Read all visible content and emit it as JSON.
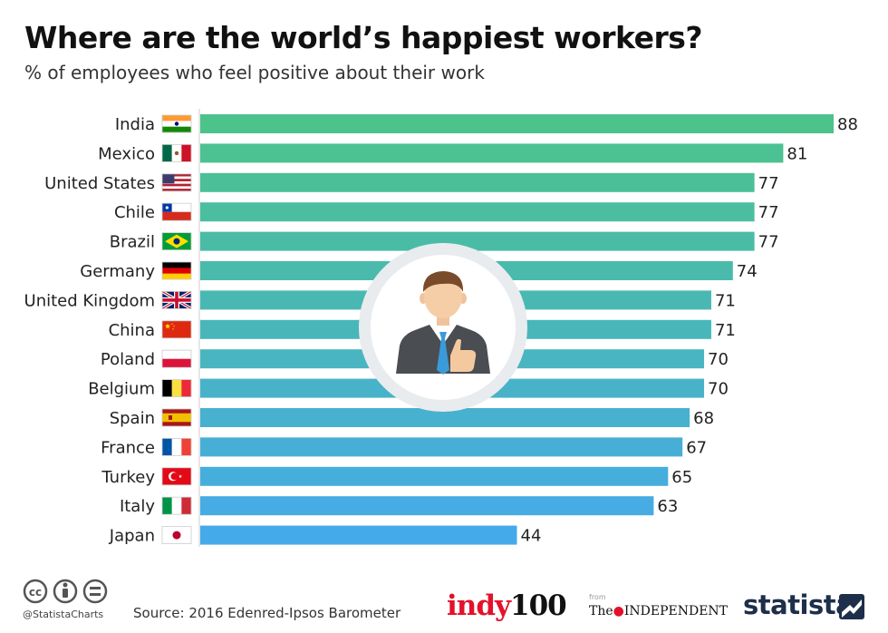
{
  "header": {
    "title": "Where are the world’s happiest workers?",
    "subtitle": "% of employees who feel positive about their work"
  },
  "chart_data": {
    "type": "bar",
    "orientation": "horizontal",
    "title": "Where are the world’s happiest workers?",
    "subtitle": "% of employees who feel positive about their work",
    "categories": [
      "India",
      "Mexico",
      "United States",
      "Chile",
      "Brazil",
      "Germany",
      "United Kingdom",
      "China",
      "Poland",
      "Belgium",
      "Spain",
      "France",
      "Turkey",
      "Italy",
      "Japan"
    ],
    "values": [
      88,
      81,
      77,
      77,
      77,
      74,
      71,
      71,
      70,
      70,
      68,
      67,
      65,
      63,
      44
    ],
    "xlim": [
      0,
      88
    ],
    "grid": false,
    "legend": "none",
    "colors": {
      "bar_top": "#4cc38a",
      "bar_bottom": "#45aaea",
      "label": "#222222",
      "axis_line": "#cccccc"
    }
  },
  "footer": {
    "source": "Source: 2016 Edenred-Ipsos Barometer",
    "handle": "@StatistaCharts",
    "license_icons": [
      "cc-icon",
      "by-icon",
      "nd-icon"
    ],
    "indy_part1": "indy",
    "indy_part2": "100",
    "from": "from",
    "independent_pre": "The",
    "independent_post": "INDEPENDENT",
    "statista": "statista"
  }
}
